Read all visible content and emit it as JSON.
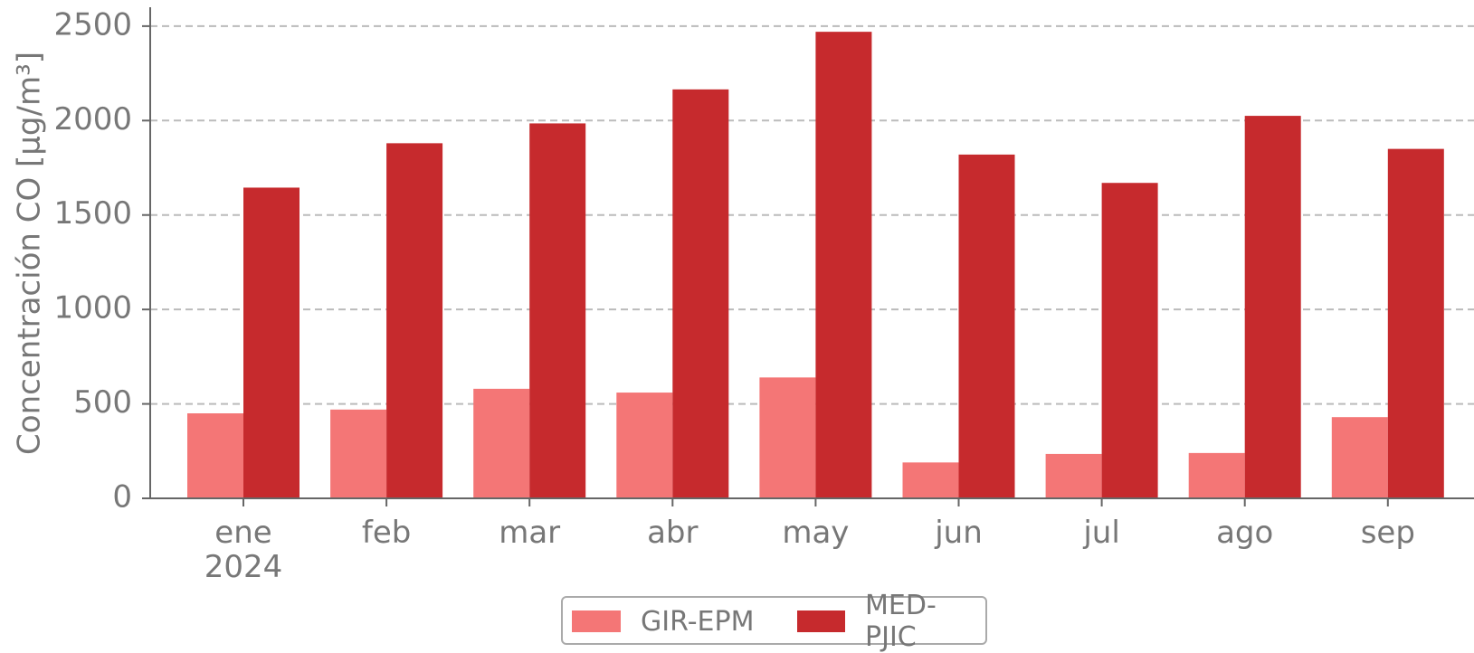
{
  "chart_data": {
    "type": "bar",
    "y_label": "Concentración CO [μg/m³]",
    "categories": [
      "ene\n2024",
      "feb",
      "mar",
      "abr",
      "may",
      "jun",
      "jul",
      "ago",
      "sep"
    ],
    "series": [
      {
        "name": "GIR-EPM",
        "color": "#f47676",
        "values": [
          450,
          470,
          580,
          560,
          640,
          190,
          235,
          240,
          430
        ]
      },
      {
        "name": "MED-PJIC",
        "color": "#c62a2d",
        "values": [
          1645,
          1880,
          1985,
          2165,
          2470,
          1820,
          1670,
          2025,
          1850
        ]
      }
    ],
    "ylim": [
      0,
      2600
    ],
    "yticks": [
      0,
      500,
      1000,
      1500,
      2000,
      2500
    ],
    "grid": true
  }
}
